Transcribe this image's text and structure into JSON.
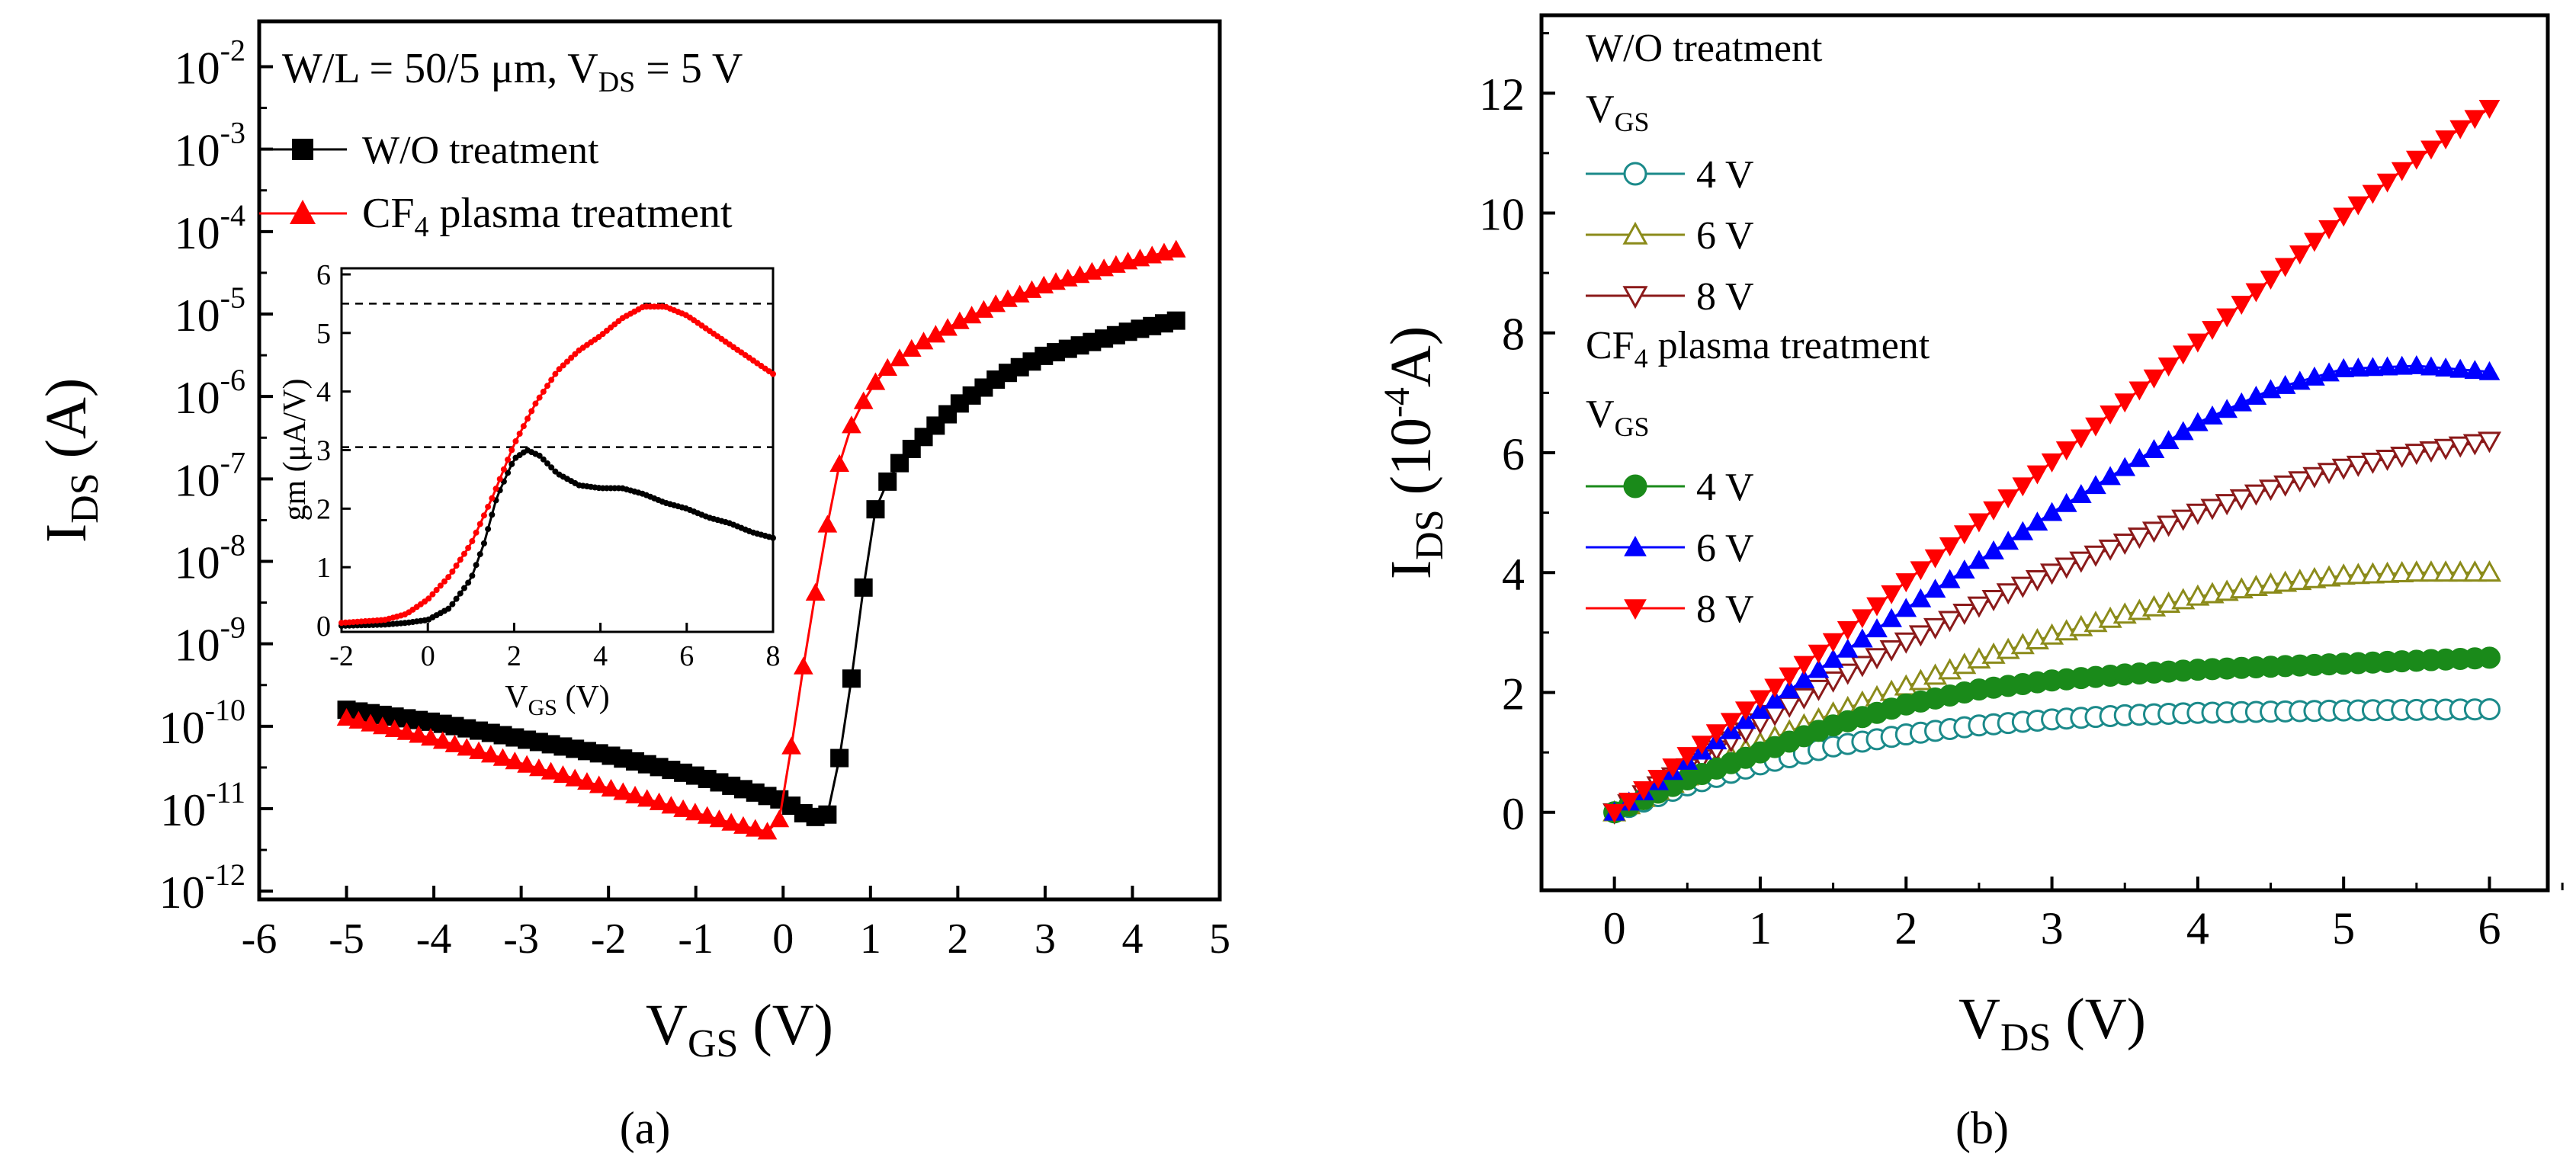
{
  "chart_data": [
    {
      "panel": "a",
      "type": "line",
      "scale_y": "log",
      "xlabel_main": "V",
      "xlabel_sub": "GS",
      "xlabel_tail": " (V)",
      "ylabel_main": "I",
      "ylabel_sub": "DS",
      "ylabel_tail": " (A)",
      "xlim": [
        -6,
        5
      ],
      "ylim_exp": [
        -12,
        -2
      ],
      "xticks": [
        "-6",
        "-5",
        "-4",
        "-3",
        "-2",
        "-1",
        "0",
        "1",
        "2",
        "3",
        "4",
        "5"
      ],
      "yticks": [
        {
          "base": "10",
          "exp": "-12"
        },
        {
          "base": "10",
          "exp": "-11"
        },
        {
          "base": "10",
          "exp": "-10"
        },
        {
          "base": "10",
          "exp": "-9"
        },
        {
          "base": "10",
          "exp": "-8"
        },
        {
          "base": "10",
          "exp": "-7"
        },
        {
          "base": "10",
          "exp": "-6"
        },
        {
          "base": "10",
          "exp": "-5"
        },
        {
          "base": "10",
          "exp": "-4"
        },
        {
          "base": "10",
          "exp": "-3"
        },
        {
          "base": "10",
          "exp": "-2"
        }
      ],
      "annotation": {
        "part1": "W/L = 50/5 μm, V",
        "sub": "DS",
        "part2": " = 5 V"
      },
      "legend": [
        {
          "label": "W/O treatment",
          "label_sub": "",
          "label_tail": ""
        },
        {
          "label": "CF",
          "label_sub": "4",
          "label_tail": " plasma treatment"
        }
      ],
      "series": [
        {
          "name": "W/O treatment",
          "color": "#000000",
          "marker": "square",
          "x": [
            -5,
            -4,
            -3,
            -2,
            -1,
            0,
            0.3,
            0.5,
            0.6,
            0.7,
            0.8,
            0.9,
            1.0,
            1.1,
            1.3,
            1.5,
            2.0,
            2.5,
            3.0,
            3.5,
            4.0,
            4.5
          ],
          "y_log": [
            -9.8,
            -9.95,
            -10.15,
            -10.35,
            -10.6,
            -10.9,
            -11.1,
            -11.1,
            -10.7,
            -10.0,
            -9.3,
            -8.5,
            -7.6,
            -7.2,
            -6.85,
            -6.6,
            -6.1,
            -5.75,
            -5.5,
            -5.35,
            -5.2,
            -5.08
          ]
        },
        {
          "name": "CF4 plasma treatment",
          "color": "#ff0000",
          "marker": "triangle-up",
          "x": [
            -5,
            -4,
            -3,
            -2,
            -1,
            -0.5,
            -0.1,
            0.0,
            0.1,
            0.2,
            0.3,
            0.4,
            0.5,
            0.6,
            0.7,
            0.8,
            1.0,
            1.2,
            1.5,
            2.0,
            2.5,
            3.0,
            3.5,
            4.0,
            4.5
          ],
          "y_log": [
            -9.9,
            -10.15,
            -10.45,
            -10.75,
            -11.05,
            -11.2,
            -11.3,
            -11.0,
            -10.2,
            -9.5,
            -8.8,
            -8.2,
            -7.6,
            -7.0,
            -6.6,
            -6.3,
            -5.9,
            -5.65,
            -5.4,
            -5.1,
            -4.85,
            -4.65,
            -4.5,
            -4.35,
            -4.22
          ]
        }
      ]
    },
    {
      "panel": "a-inset",
      "type": "line",
      "xlabel_main": "V",
      "xlabel_sub": "GS",
      "xlabel_tail": " (V)",
      "ylabel": "gm (μA/V)",
      "xlim": [
        -2,
        8
      ],
      "ylim": [
        0,
        6
      ],
      "xticks": [
        "-2",
        "0",
        "2",
        "4",
        "6",
        "8"
      ],
      "yticks": [
        "0",
        "1",
        "2",
        "3",
        "4",
        "5",
        "6"
      ],
      "reference_lines": [
        5.5,
        3.05
      ],
      "series": [
        {
          "name": "W/O treatment",
          "color": "#000000",
          "x": [
            -2,
            -1,
            -0.5,
            0,
            0.5,
            1.0,
            1.3,
            1.6,
            2.0,
            2.3,
            2.6,
            3.0,
            3.5,
            4.0,
            4.5,
            5.0,
            5.5,
            6.0,
            6.5,
            7.0,
            7.5,
            8.0
          ],
          "y": [
            0.0,
            0.02,
            0.05,
            0.1,
            0.3,
            0.8,
            1.4,
            2.2,
            2.85,
            3.0,
            2.9,
            2.6,
            2.4,
            2.35,
            2.35,
            2.25,
            2.1,
            2.0,
            1.85,
            1.75,
            1.6,
            1.5
          ]
        },
        {
          "name": "CF4 plasma treatment",
          "color": "#ff0000",
          "x": [
            -2,
            -1,
            -0.5,
            0,
            0.5,
            1.0,
            1.5,
            2.0,
            2.5,
            3.0,
            3.5,
            4.0,
            4.5,
            5.0,
            5.5,
            6.0,
            6.5,
            7.0,
            7.5,
            8.0
          ],
          "y": [
            0.05,
            0.1,
            0.2,
            0.45,
            0.85,
            1.4,
            2.2,
            3.1,
            3.8,
            4.35,
            4.7,
            4.95,
            5.25,
            5.45,
            5.45,
            5.3,
            5.05,
            4.8,
            4.55,
            4.3
          ]
        }
      ]
    },
    {
      "panel": "b",
      "type": "line",
      "xlabel_main": "V",
      "xlabel_sub": "DS",
      "xlabel_tail": " (V)",
      "ylabel_main": "I",
      "ylabel_sub": "DS",
      "ylabel_tail1": " (10",
      "ylabel_sup": "-4",
      "ylabel_tail2": "A)",
      "xlim": [
        -0.5,
        6.4
      ],
      "ylim": [
        -1.3,
        13.3
      ],
      "xticks": [
        "0",
        "1",
        "2",
        "3",
        "4",
        "5",
        "6"
      ],
      "yticks": [
        "0",
        "2",
        "4",
        "6",
        "8",
        "10",
        "12"
      ],
      "legend_heading1": "W/O treatment",
      "legend_vgs": {
        "main": "V",
        "sub": "GS"
      },
      "legend_heading2": {
        "main": "CF",
        "sub": "4",
        "tail": " plasma treatment"
      },
      "series": [
        {
          "name": "W/O 4 V",
          "label": "4 V",
          "group": "wo",
          "color": "#1b8a8a",
          "marker": "circle-open",
          "x": [
            0,
            0.5,
            1,
            1.5,
            2,
            2.5,
            3,
            3.5,
            4,
            4.5,
            5,
            5.5,
            6
          ],
          "y": [
            0,
            0.45,
            0.8,
            1.1,
            1.3,
            1.45,
            1.55,
            1.62,
            1.66,
            1.68,
            1.7,
            1.71,
            1.72
          ]
        },
        {
          "name": "W/O 6 V",
          "label": "6 V",
          "group": "wo",
          "color": "#8b8b1a",
          "marker": "triangle-up-open",
          "x": [
            0,
            0.5,
            1,
            1.5,
            2,
            2.5,
            3,
            3.5,
            4,
            4.5,
            5,
            5.5,
            6
          ],
          "y": [
            0,
            0.6,
            1.15,
            1.65,
            2.1,
            2.55,
            2.95,
            3.3,
            3.6,
            3.8,
            3.95,
            4.0,
            4.0
          ]
        },
        {
          "name": "W/O 8 V",
          "label": "8 V",
          "group": "wo",
          "color": "#8b1a1a",
          "marker": "triangle-down-open",
          "x": [
            0,
            0.5,
            1,
            1.5,
            2,
            2.5,
            3,
            3.5,
            4,
            4.5,
            5,
            5.5,
            6
          ],
          "y": [
            0,
            0.75,
            1.5,
            2.2,
            2.85,
            3.45,
            4.0,
            4.5,
            5.0,
            5.4,
            5.75,
            6.0,
            6.2
          ]
        },
        {
          "name": "CF4 4 V",
          "label": "4 V",
          "group": "cf4",
          "color": "#1a8a1a",
          "marker": "circle",
          "x": [
            0,
            0.5,
            1,
            1.5,
            2,
            2.5,
            3,
            3.5,
            4,
            4.5,
            5,
            5.5,
            6
          ],
          "y": [
            0,
            0.55,
            1.0,
            1.45,
            1.8,
            2.05,
            2.2,
            2.3,
            2.38,
            2.43,
            2.48,
            2.53,
            2.58
          ]
        },
        {
          "name": "CF4 6 V",
          "label": "6 V",
          "group": "cf4",
          "color": "#0000ff",
          "marker": "triangle-up",
          "x": [
            0,
            0.5,
            1,
            1.5,
            2,
            2.5,
            3,
            3.5,
            4,
            4.5,
            5,
            5.5,
            6
          ],
          "y": [
            0,
            0.85,
            1.7,
            2.55,
            3.4,
            4.2,
            5.0,
            5.75,
            6.5,
            7.05,
            7.4,
            7.45,
            7.35
          ]
        },
        {
          "name": "CF4 8 V",
          "label": "8 V",
          "group": "cf4",
          "color": "#ff0000",
          "marker": "triangle-down",
          "x": [
            0,
            0.5,
            1,
            1.5,
            2,
            2.5,
            3,
            3.5,
            4,
            4.5,
            5,
            5.5,
            6
          ],
          "y": [
            0,
            0.95,
            1.9,
            2.85,
            3.85,
            4.85,
            5.85,
            6.85,
            7.85,
            8.9,
            9.95,
            10.9,
            11.75
          ]
        }
      ]
    }
  ],
  "labels": {
    "panel_a": "(a)",
    "panel_b": "(b)"
  }
}
